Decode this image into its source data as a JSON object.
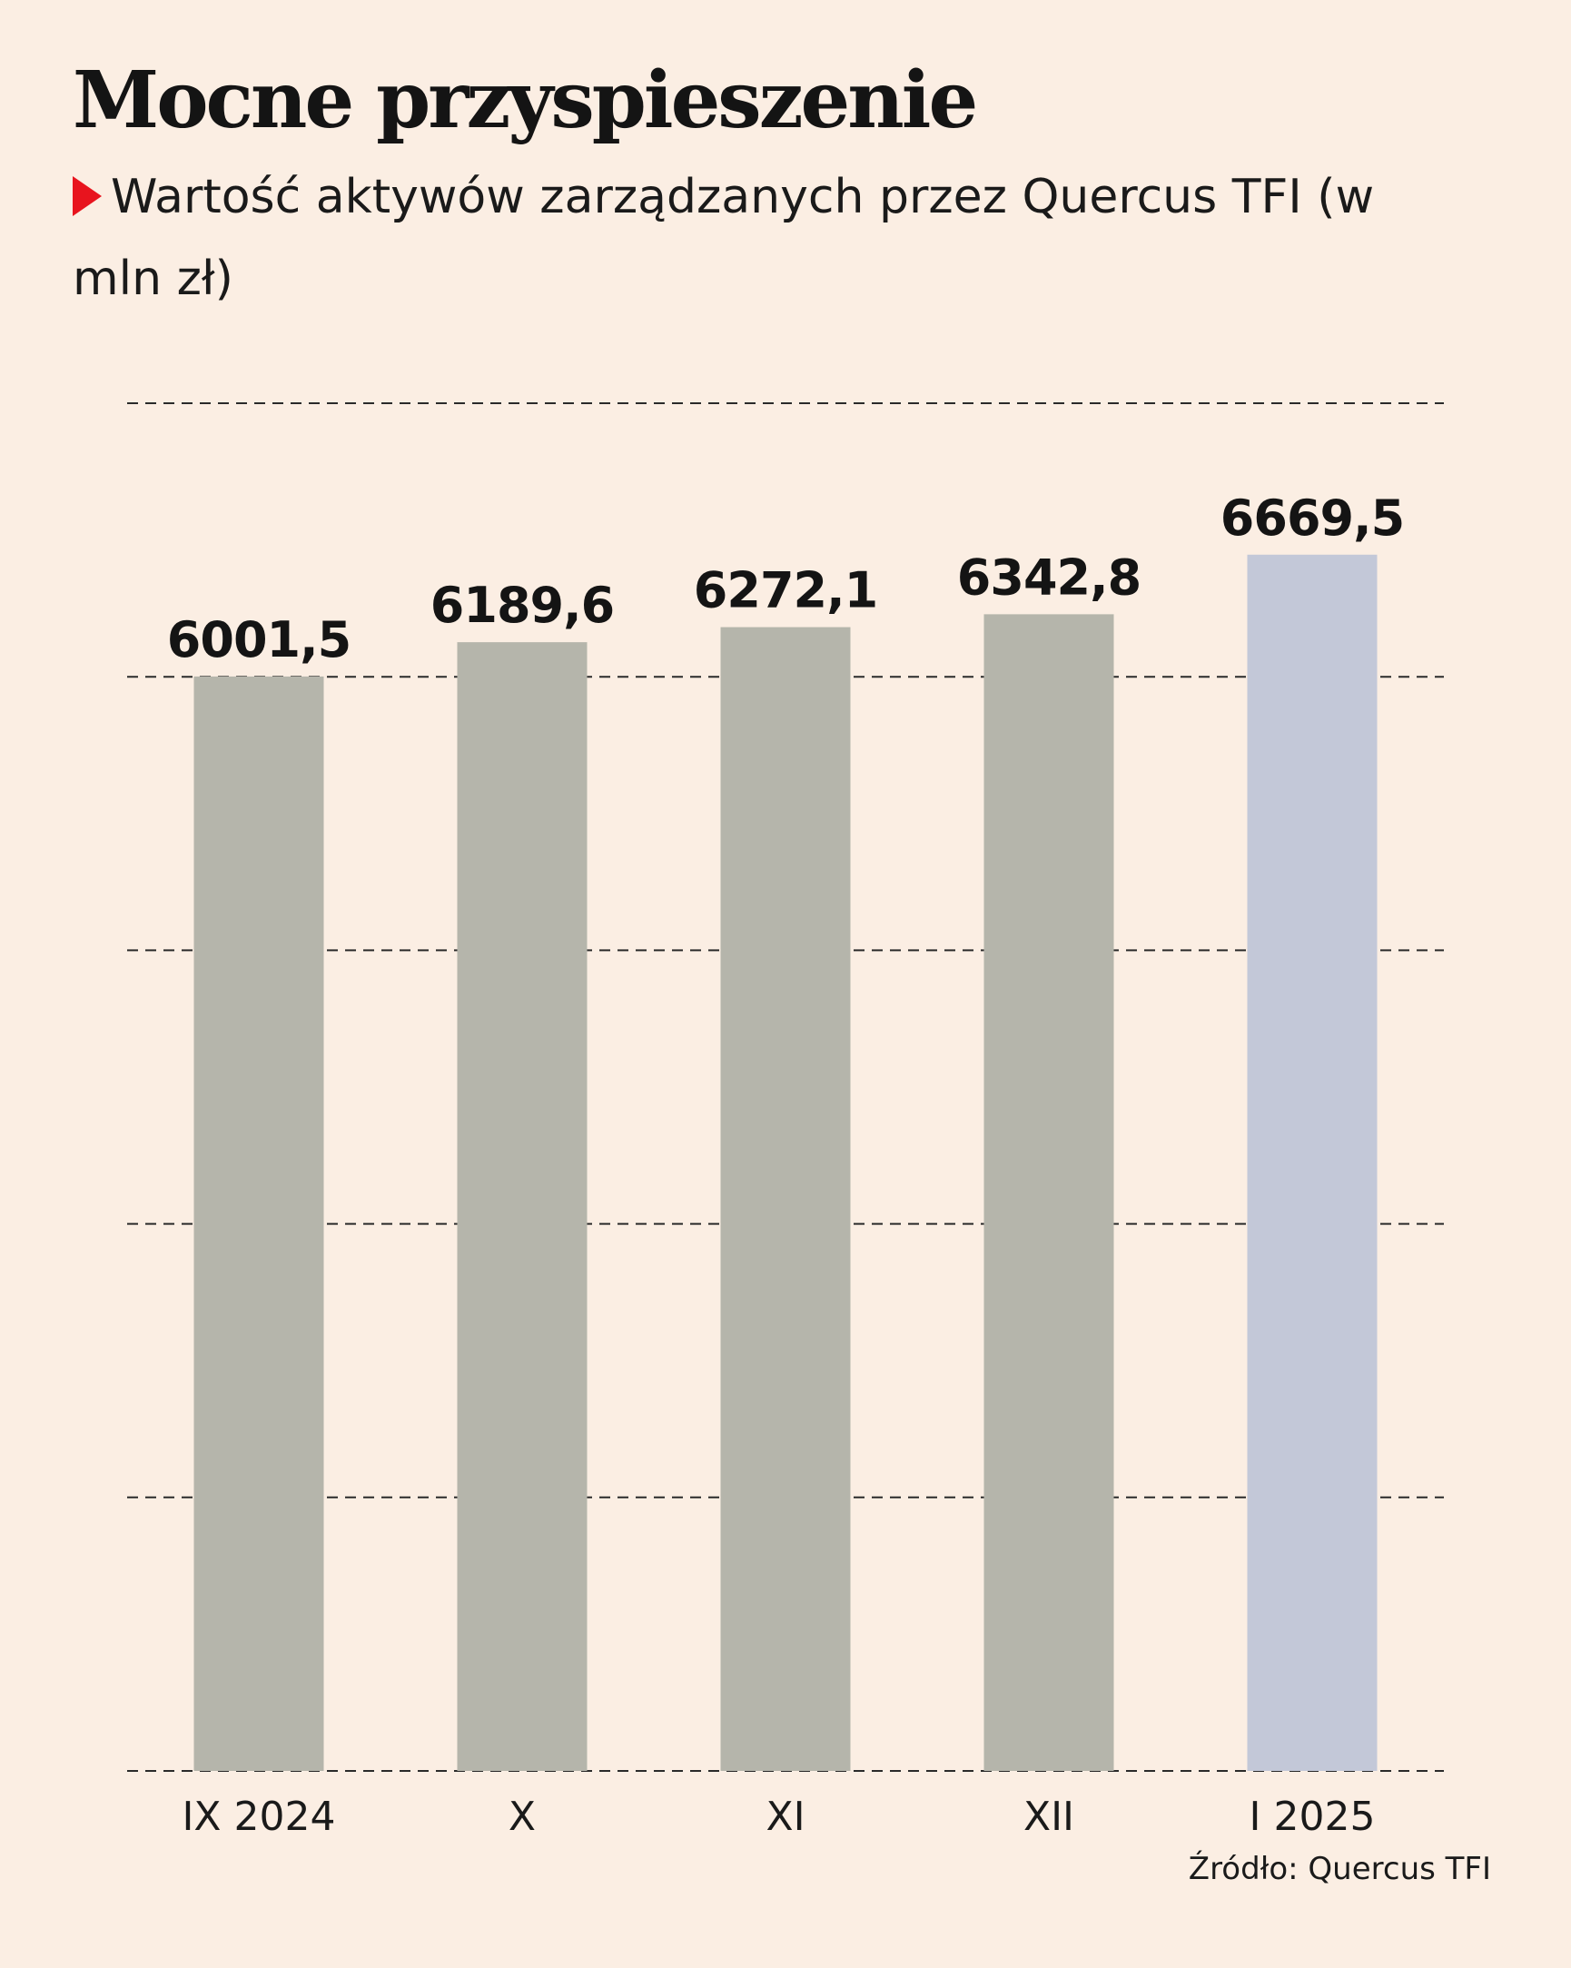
{
  "header": {
    "title": "Mocne przyspieszenie",
    "subtitle": "Wartość aktywów zarządzanych przez Quercus TFI (w mln zł)"
  },
  "footer": {
    "source": "Źródło: Quercus TFI"
  },
  "chart_data": {
    "type": "bar",
    "title": "Mocne przyspieszenie",
    "subtitle": "Wartość aktywów zarządzanych przez Quercus TFI (w mln zł)",
    "categories": [
      "IX 2024",
      "X",
      "XI",
      "XII",
      "I 2025"
    ],
    "values": [
      6001.5,
      6189.6,
      6272.1,
      6342.8,
      6669.5
    ],
    "value_labels": [
      "6001,5",
      "6189,6",
      "6272,1",
      "6342,8",
      "6669,5"
    ],
    "xlabel": "",
    "ylabel": "",
    "ylim": [
      0,
      7500
    ],
    "y_gridlines": [
      0,
      1500,
      3000,
      4500,
      6000,
      7500
    ],
    "grid": "horizontal-dashed",
    "y_tick_labels_visible": false,
    "colors": {
      "bar": "#b5b5ab",
      "bar_highlight": "#c3c8d8",
      "gridline": "#2a2a2a",
      "accent": "#e8141e",
      "background": "#fbeee3"
    },
    "highlight_index": 4
  }
}
